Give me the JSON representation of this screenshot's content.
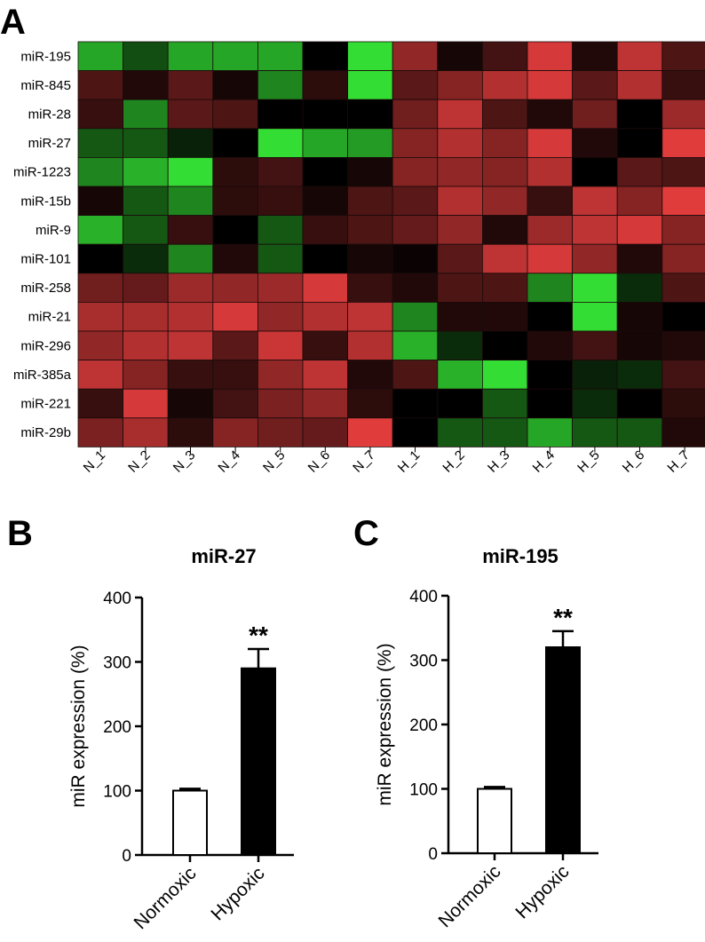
{
  "panels": {
    "A": "A",
    "B": "B",
    "C": "C"
  },
  "chart_data": [
    {
      "type": "heatmap",
      "panel": "A",
      "rows": [
        "miR-195",
        "miR-845",
        "miR-28",
        "miR-27",
        "miR-1223",
        "miR-15b",
        "miR-9",
        "miR-101",
        "miR-258",
        "miR-21",
        "miR-296",
        "miR-385a",
        "miR-221",
        "miR-29b"
      ],
      "columns": [
        "N_1",
        "N_2",
        "N_3",
        "N_4",
        "N_5",
        "N_6",
        "N_7",
        "H_1",
        "H_2",
        "H_3",
        "H_4",
        "H_5",
        "H_6",
        "H_7"
      ],
      "color_scale": {
        "negative": "#33dd33",
        "zero": "#000000",
        "positive": "#e03c3c"
      },
      "values": [
        [
          0.75,
          0.35,
          0.75,
          0.75,
          0.75,
          0.0,
          1.0,
          -0.65,
          -0.1,
          -0.3,
          -0.95,
          -0.15,
          -0.85,
          -0.35
        ],
        [
          -0.35,
          -0.15,
          -0.4,
          -0.1,
          0.6,
          -0.2,
          1.0,
          -0.4,
          -0.6,
          -0.8,
          -0.95,
          -0.4,
          -0.8,
          -0.25
        ],
        [
          -0.25,
          0.6,
          -0.4,
          -0.35,
          0.0,
          0.0,
          0.0,
          -0.5,
          -0.85,
          -0.35,
          -0.15,
          -0.5,
          0.0,
          -0.7
        ],
        [
          0.4,
          0.4,
          0.15,
          0.0,
          1.0,
          0.75,
          0.7,
          -0.6,
          -0.8,
          -0.6,
          -0.95,
          -0.15,
          0.0,
          -1.0
        ],
        [
          0.6,
          0.8,
          1.0,
          -0.2,
          -0.3,
          0.0,
          -0.1,
          -0.6,
          -0.65,
          -0.6,
          -0.8,
          0.0,
          -0.4,
          -0.35
        ],
        [
          -0.1,
          0.4,
          0.6,
          -0.2,
          -0.25,
          -0.1,
          -0.35,
          -0.4,
          -0.8,
          -0.65,
          -0.25,
          -0.85,
          -0.6,
          -1.0
        ],
        [
          0.8,
          0.4,
          -0.25,
          0.0,
          0.4,
          -0.25,
          -0.35,
          -0.45,
          -0.65,
          -0.15,
          -0.7,
          -0.85,
          -0.95,
          -0.6
        ],
        [
          0.0,
          0.2,
          0.6,
          -0.15,
          0.4,
          0.0,
          -0.1,
          -0.05,
          -0.4,
          -0.85,
          -0.95,
          -0.65,
          -0.15,
          -0.6
        ],
        [
          -0.5,
          -0.45,
          -0.7,
          -0.65,
          -0.7,
          -0.95,
          -0.25,
          -0.15,
          -0.35,
          -0.35,
          0.6,
          1.0,
          0.2,
          -0.35
        ],
        [
          -0.75,
          -0.75,
          -0.8,
          -0.95,
          -0.65,
          -0.8,
          -0.85,
          0.6,
          -0.15,
          -0.15,
          0.0,
          1.0,
          -0.1,
          0.0
        ],
        [
          -0.65,
          -0.8,
          -0.85,
          -0.4,
          -0.9,
          -0.25,
          -0.8,
          0.8,
          0.2,
          0.0,
          -0.15,
          -0.3,
          -0.1,
          -0.15
        ],
        [
          -0.85,
          -0.6,
          -0.25,
          -0.25,
          -0.65,
          -0.85,
          -0.15,
          -0.35,
          0.8,
          1.0,
          0.0,
          0.15,
          0.2,
          -0.3
        ],
        [
          -0.25,
          -0.95,
          -0.1,
          -0.3,
          -0.55,
          -0.65,
          -0.2,
          0.0,
          0.0,
          0.4,
          0.0,
          0.2,
          0.0,
          -0.2
        ],
        [
          -0.55,
          -0.75,
          -0.2,
          -0.6,
          -0.5,
          -0.45,
          -1.0,
          0.0,
          0.4,
          0.4,
          0.75,
          0.4,
          0.4,
          -0.15
        ]
      ]
    },
    {
      "type": "bar",
      "panel": "B",
      "title": "miR-27",
      "categories": [
        "Normoxic",
        "Hypoxic"
      ],
      "values": [
        100,
        290
      ],
      "errors": [
        3,
        30
      ],
      "ylabel": "miR expression (%)",
      "ylim": [
        0,
        400
      ],
      "yticks": [
        "0",
        "100",
        "200",
        "300",
        "400"
      ],
      "significance": [
        "",
        "**"
      ]
    },
    {
      "type": "bar",
      "panel": "C",
      "title": "miR-195",
      "categories": [
        "Normoxic",
        "Hypoxic"
      ],
      "values": [
        100,
        320
      ],
      "errors": [
        3,
        25
      ],
      "ylabel": "miR expression (%)",
      "ylim": [
        0,
        400
      ],
      "yticks": [
        "0",
        "100",
        "200",
        "300",
        "400"
      ],
      "significance": [
        "",
        "**"
      ]
    }
  ]
}
